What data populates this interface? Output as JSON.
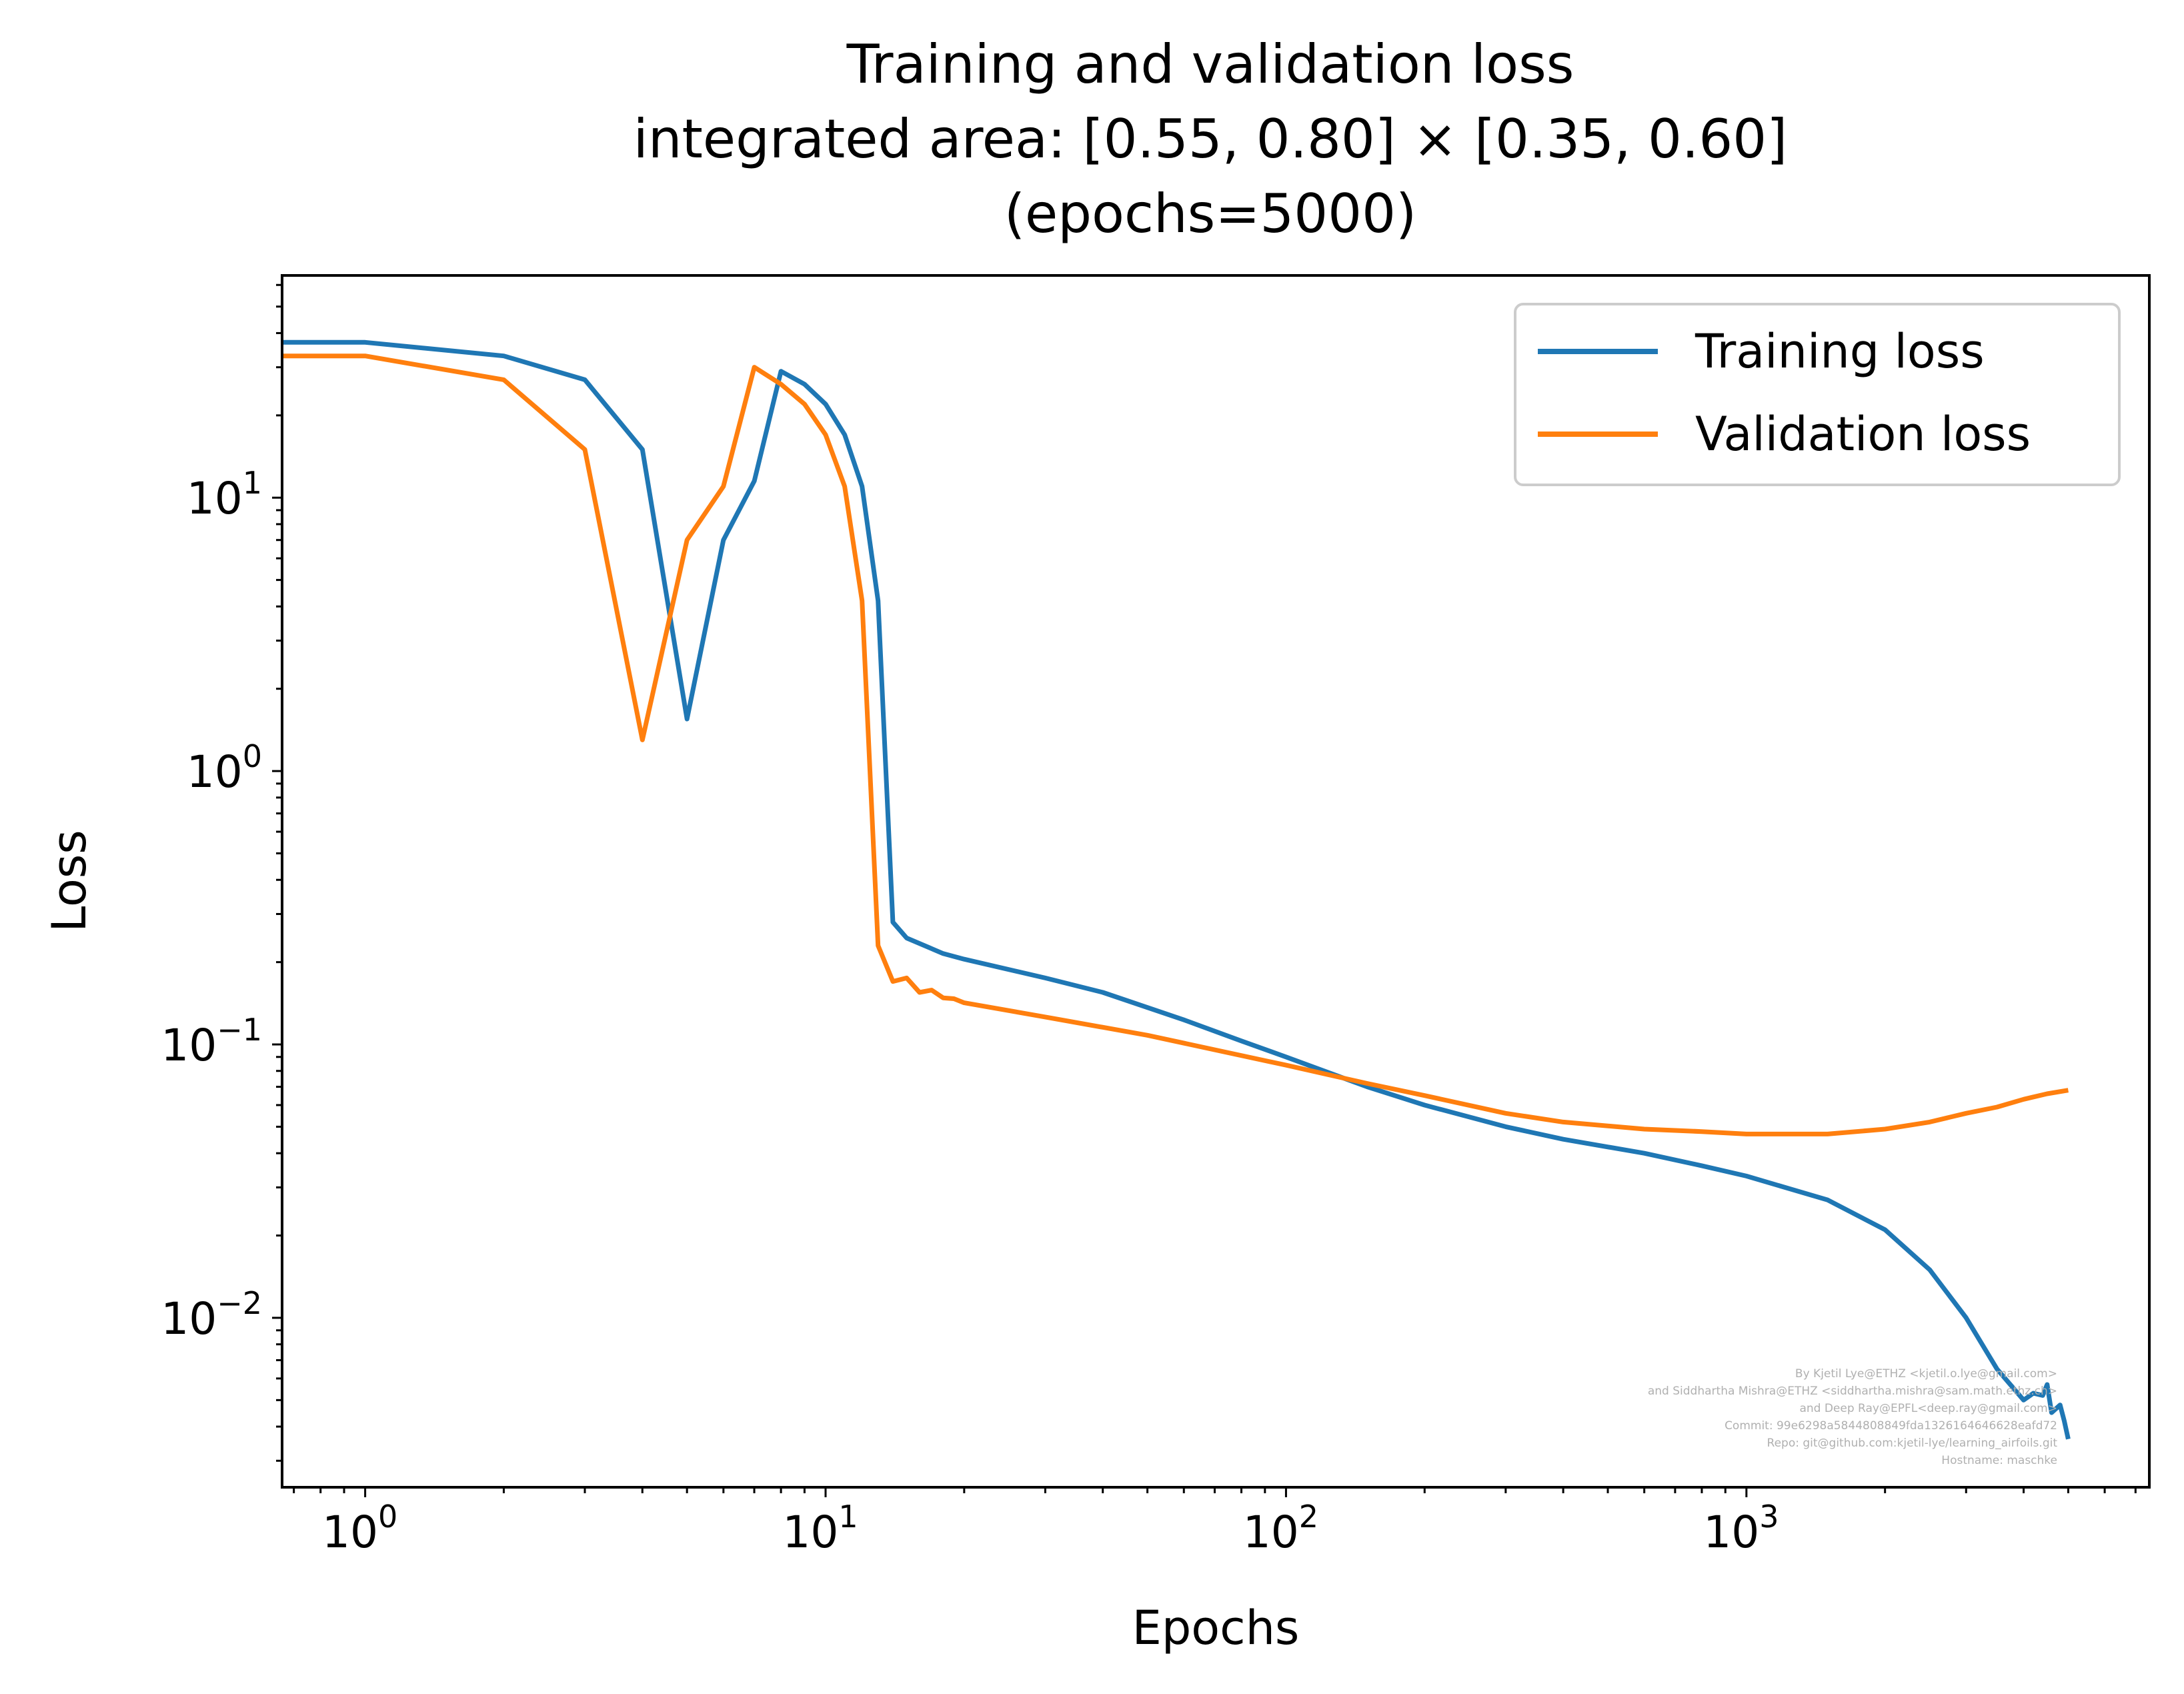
{
  "chart_data": {
    "type": "line",
    "title": "Training and validation loss",
    "subtitle_lines": [
      "integrated area: [0.55, 0.80] × [0.35, 0.60]",
      "(epochs=5000)"
    ],
    "xlabel": "Epochs",
    "ylabel": "Loss",
    "xscale": "log",
    "yscale": "log",
    "xlim": [
      0.66,
      7500
    ],
    "ylim": [
      0.0024,
      65
    ],
    "x_ticks": [
      {
        "base": "10",
        "exp": "0",
        "value": 1
      },
      {
        "base": "10",
        "exp": "1",
        "value": 10
      },
      {
        "base": "10",
        "exp": "2",
        "value": 100
      },
      {
        "base": "10",
        "exp": "3",
        "value": 1000
      }
    ],
    "y_ticks": [
      {
        "base": "10",
        "exp": "−2",
        "value": 0.01
      },
      {
        "base": "10",
        "exp": "−1",
        "value": 0.1
      },
      {
        "base": "10",
        "exp": "0",
        "value": 1
      },
      {
        "base": "10",
        "exp": "1",
        "value": 10
      }
    ],
    "grid": false,
    "legend_position": "top-right",
    "series": [
      {
        "name": "Training loss",
        "color": "#1f77b4",
        "points": [
          [
            0.66,
            37
          ],
          [
            1,
            37
          ],
          [
            2,
            33
          ],
          [
            3,
            27
          ],
          [
            4,
            15
          ],
          [
            5,
            1.55
          ],
          [
            6,
            7
          ],
          [
            7,
            11.5
          ],
          [
            8,
            29
          ],
          [
            9,
            26
          ],
          [
            10,
            22
          ],
          [
            11,
            17
          ],
          [
            12,
            11
          ],
          [
            13,
            4.2
          ],
          [
            14,
            0.28
          ],
          [
            15,
            0.245
          ],
          [
            18,
            0.215
          ],
          [
            20,
            0.205
          ],
          [
            30,
            0.175
          ],
          [
            40,
            0.155
          ],
          [
            60,
            0.123
          ],
          [
            80,
            0.103
          ],
          [
            100,
            0.09
          ],
          [
            150,
            0.07
          ],
          [
            200,
            0.06
          ],
          [
            300,
            0.05
          ],
          [
            400,
            0.045
          ],
          [
            600,
            0.04
          ],
          [
            800,
            0.036
          ],
          [
            1000,
            0.033
          ],
          [
            1500,
            0.027
          ],
          [
            2000,
            0.021
          ],
          [
            2500,
            0.015
          ],
          [
            3000,
            0.01
          ],
          [
            3500,
            0.0065
          ],
          [
            4000,
            0.005
          ],
          [
            4200,
            0.0053
          ],
          [
            4400,
            0.0052
          ],
          [
            4500,
            0.0057
          ],
          [
            4600,
            0.0045
          ],
          [
            4800,
            0.0048
          ],
          [
            4900,
            0.0042
          ],
          [
            5000,
            0.0036
          ]
        ]
      },
      {
        "name": "Validation loss",
        "color": "#ff7f0e",
        "points": [
          [
            0.66,
            33
          ],
          [
            1,
            33
          ],
          [
            2,
            27
          ],
          [
            3,
            15
          ],
          [
            4,
            1.3
          ],
          [
            5,
            7
          ],
          [
            6,
            11
          ],
          [
            7,
            30
          ],
          [
            8,
            26
          ],
          [
            9,
            22
          ],
          [
            10,
            17
          ],
          [
            11,
            11
          ],
          [
            12,
            4.2
          ],
          [
            13,
            0.23
          ],
          [
            14,
            0.17
          ],
          [
            15,
            0.175
          ],
          [
            16,
            0.155
          ],
          [
            17,
            0.158
          ],
          [
            18,
            0.148
          ],
          [
            19,
            0.147
          ],
          [
            20,
            0.142
          ],
          [
            30,
            0.126
          ],
          [
            50,
            0.108
          ],
          [
            100,
            0.084
          ],
          [
            150,
            0.072
          ],
          [
            200,
            0.065
          ],
          [
            300,
            0.056
          ],
          [
            400,
            0.052
          ],
          [
            600,
            0.049
          ],
          [
            800,
            0.048
          ],
          [
            1000,
            0.047
          ],
          [
            1500,
            0.047
          ],
          [
            2000,
            0.049
          ],
          [
            2500,
            0.052
          ],
          [
            3000,
            0.056
          ],
          [
            3500,
            0.059
          ],
          [
            4000,
            0.063
          ],
          [
            4500,
            0.066
          ],
          [
            5000,
            0.068
          ]
        ]
      }
    ],
    "credit_lines": [
      "By Kjetil Lye@ETHZ <kjetil.o.lye@gmail.com>",
      "and Siddhartha Mishra@ETHZ <siddhartha.mishra@sam.math.ethz.ch>",
      "and Deep Ray@EPFL<deep.ray@gmail.com>",
      "Commit: 99e6298a5844808849fda1326164646628eafd72",
      "Repo: git@github.com:kjetil-lye/learning_airfoils.git",
      "Hostname: maschke"
    ]
  }
}
